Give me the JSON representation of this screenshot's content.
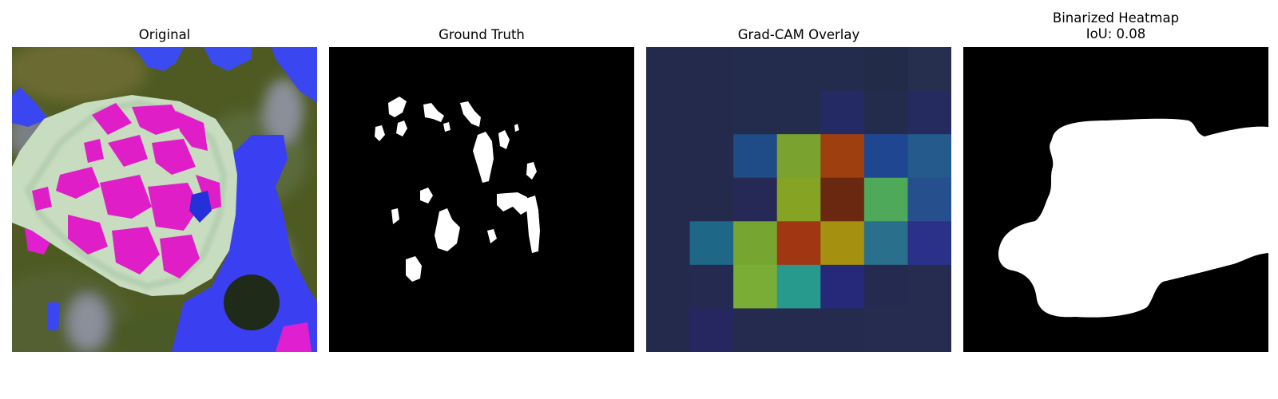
{
  "panels": {
    "original": {
      "title": "Original"
    },
    "ground_truth": {
      "title": "Ground Truth"
    },
    "gradcam": {
      "title": "Grad-CAM Overlay",
      "grid": [
        [
          "#232a4c",
          "#232a4c",
          "#242c4e",
          "#242c4e",
          "#242c4e",
          "#222b48",
          "#262f4e"
        ],
        [
          "#232a4c",
          "#232a4c",
          "#242c4e",
          "#242c4e",
          "#242a63",
          "#242c4e",
          "#252b5e"
        ],
        [
          "#232a4c",
          "#232a4c",
          "#1f4b86",
          "#79a22e",
          "#9e3f10",
          "#1f4690",
          "#245a8c"
        ],
        [
          "#232a4c",
          "#232a4c",
          "#262855",
          "#86a324",
          "#6a2810",
          "#4fa95a",
          "#264f8e"
        ],
        [
          "#232a4c",
          "#1e6786",
          "#76a631",
          "#a13613",
          "#a6900f",
          "#2a6f8b",
          "#2b3188"
        ],
        [
          "#232a4c",
          "#242a50",
          "#7aad35",
          "#27998d",
          "#26297a",
          "#242a50",
          "#262b50"
        ],
        [
          "#232a4c",
          "#262760",
          "#242b4f",
          "#242b4f",
          "#252b4f",
          "#262b50",
          "#262b50"
        ]
      ]
    },
    "binarized": {
      "title_line1": "Binarized Heatmap",
      "title_line2": "IoU: 0.08"
    }
  }
}
